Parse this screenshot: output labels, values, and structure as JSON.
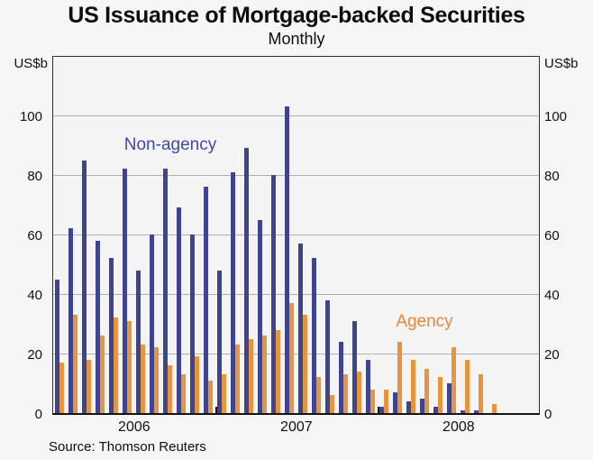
{
  "title": "US Issuance of Mortgage-backed Securities",
  "subtitle": "Monthly",
  "source": "Source: Thomson Reuters",
  "axis": {
    "unit_left": "US$b",
    "unit_right": "US$b",
    "year_labels": [
      "2006",
      "2007",
      "2008"
    ]
  },
  "series_labels": {
    "non_agency": "Non-agency",
    "agency": "Agency"
  },
  "colors": {
    "non_agency_bar": "#3e458d",
    "agency_bar": "#e6953e",
    "non_agency_label": "#3f4b9e",
    "agency_label": "#e8873a",
    "grid": "#b1b1b4",
    "frame": "#2e2e2e",
    "plot_bg": "#f4f4f5",
    "page_bg": "#f6f6f7"
  },
  "chart_data": {
    "type": "bar",
    "title": "US Issuance of Mortgage-backed Securities",
    "subtitle": "Monthly",
    "ylabel": "US$b",
    "ylim": [
      0,
      120
    ],
    "yticks": [
      0,
      20,
      40,
      60,
      80,
      100
    ],
    "gridlines": [
      20,
      40,
      60,
      80,
      100
    ],
    "legend": "inline-text-labels",
    "x": [
      "2006-01",
      "2006-02",
      "2006-03",
      "2006-04",
      "2006-05",
      "2006-06",
      "2006-07",
      "2006-08",
      "2006-09",
      "2006-10",
      "2006-11",
      "2006-12",
      "2007-01",
      "2007-02",
      "2007-03",
      "2007-04",
      "2007-05",
      "2007-06",
      "2007-07",
      "2007-08",
      "2007-09",
      "2007-10",
      "2007-11",
      "2007-12",
      "2008-01",
      "2008-02",
      "2008-03",
      "2008-04",
      "2008-05",
      "2008-06",
      "2008-07",
      "2008-08",
      "2008-09"
    ],
    "series": [
      {
        "name": "Non-agency",
        "color": "#3e458d",
        "values": [
          45,
          62,
          85,
          58,
          52,
          82,
          48,
          60,
          82,
          69,
          60,
          76,
          48,
          81,
          89,
          65,
          80,
          103,
          57,
          52,
          38,
          24,
          31,
          18,
          2,
          7,
          4,
          5,
          2,
          10,
          1,
          1,
          0
        ]
      },
      {
        "name": "Agency",
        "color": "#e6953e",
        "values": [
          17,
          33,
          18,
          26,
          32,
          31,
          23,
          22,
          16,
          13,
          19,
          11,
          13,
          23,
          25,
          26,
          28,
          37,
          33,
          12,
          6,
          13,
          14,
          8,
          8,
          24,
          18,
          15,
          12,
          22,
          18,
          13,
          3
        ]
      }
    ]
  }
}
